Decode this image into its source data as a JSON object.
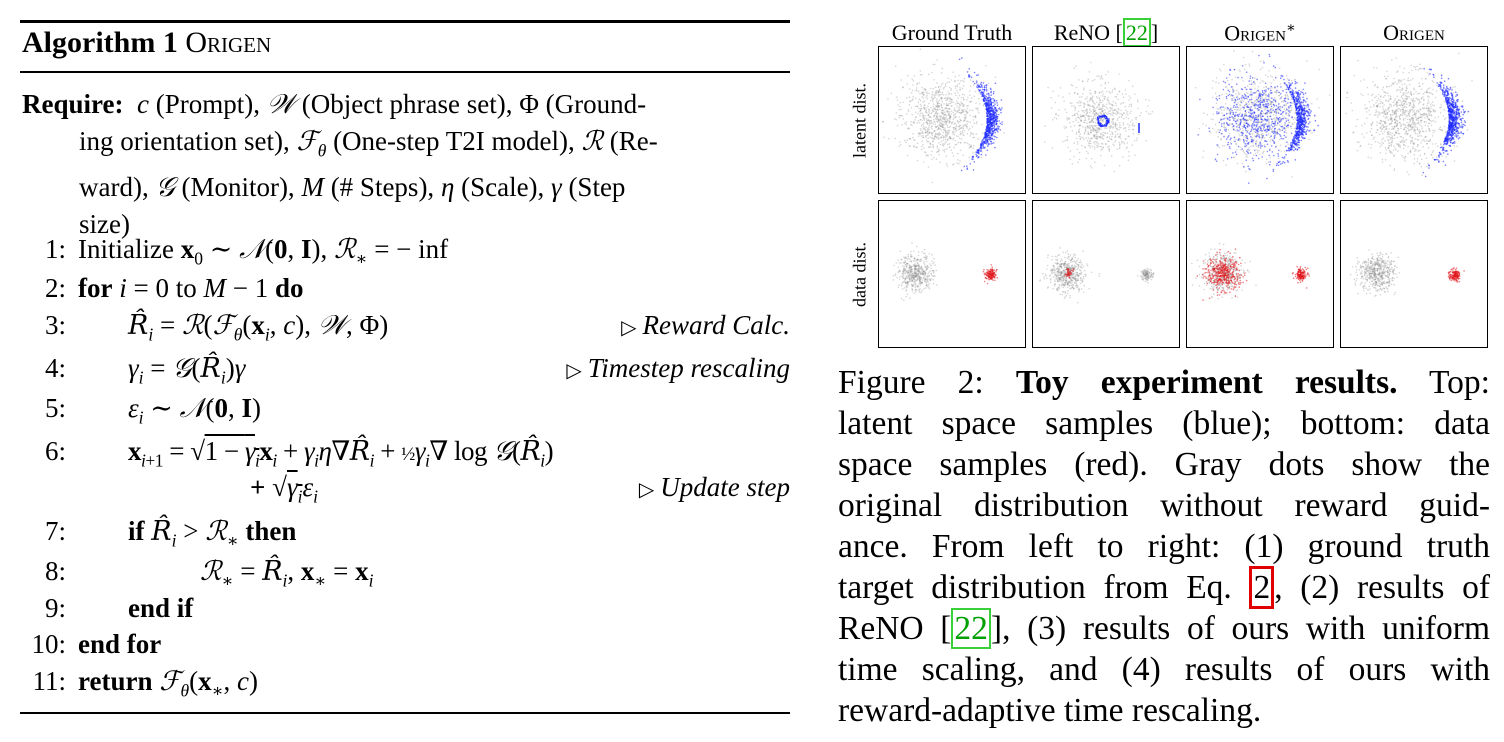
{
  "algorithm": {
    "number_label": "Algorithm 1",
    "name": "ORIGEN",
    "require_label": "Require:",
    "require_lines": [
      "c (Prompt), 𝒲 (Object phrase set), Φ (Ground-",
      "ing orientation set), ℱ_θ (One-step T2I model), ℛ (Re-",
      "ward), 𝒢 (Monitor), M (# Steps), η (Scale), γ (Step",
      "size)"
    ],
    "lines": [
      {
        "num": "1:",
        "text": "Initialize x₀ ∼ 𝒩(0, I), ℛ* = − inf",
        "comment": ""
      },
      {
        "num": "2:",
        "text": "for i = 0 to M − 1 do",
        "comment": ""
      },
      {
        "num": "3:",
        "text": "R̂ᵢ = ℛ(ℱ_θ(xᵢ, c), 𝒲, Φ)",
        "comment": "Reward Calc."
      },
      {
        "num": "4:",
        "text": "γᵢ = 𝒢(R̂ᵢ)γ",
        "comment": "Timestep rescaling"
      },
      {
        "num": "5:",
        "text": "εᵢ ∼ 𝒩(0, I)",
        "comment": ""
      },
      {
        "num": "6:",
        "text": "xᵢ₊₁ = √(1 − γᵢ)xᵢ + γᵢη∇R̂ᵢ + ½γᵢ∇ log 𝒢(R̂ᵢ)",
        "comment": ""
      },
      {
        "num": "",
        "text": "+ √γᵢ εᵢ",
        "comment": "Update step"
      },
      {
        "num": "7:",
        "text": "if R̂ᵢ > ℛ* then",
        "comment": ""
      },
      {
        "num": "8:",
        "text": "ℛ* = R̂ᵢ, x* = xᵢ",
        "comment": ""
      },
      {
        "num": "9:",
        "text": "end if",
        "comment": ""
      },
      {
        "num": "10:",
        "text": "end for",
        "comment": ""
      },
      {
        "num": "11:",
        "text": "return ℱ_θ(x*, c)",
        "comment": ""
      }
    ]
  },
  "figure": {
    "columns": [
      "Ground Truth",
      "ReNO [22]",
      "ORIGEN*",
      "ORIGEN"
    ],
    "rows": [
      "latent dist.",
      "data dist."
    ],
    "colors": {
      "blue": "#1f2bff",
      "red": "#e0141a",
      "gray": "#8a8a8a"
    }
  },
  "caption": {
    "label": "Figure 2:",
    "title": "Toy experiment results.",
    "text": "Top: latent space samples (blue); bottom: data space samples (red). Gray dots show the original distribution without reward guidance. From left to right: (1) ground truth target distribution from Eq. 2, (2) results of ReNO [22], (3) results of ours with uniform time scaling, and (4) results of ours with reward-adaptive time rescaling.",
    "eq_ref": "2",
    "cite_ref": "22"
  }
}
